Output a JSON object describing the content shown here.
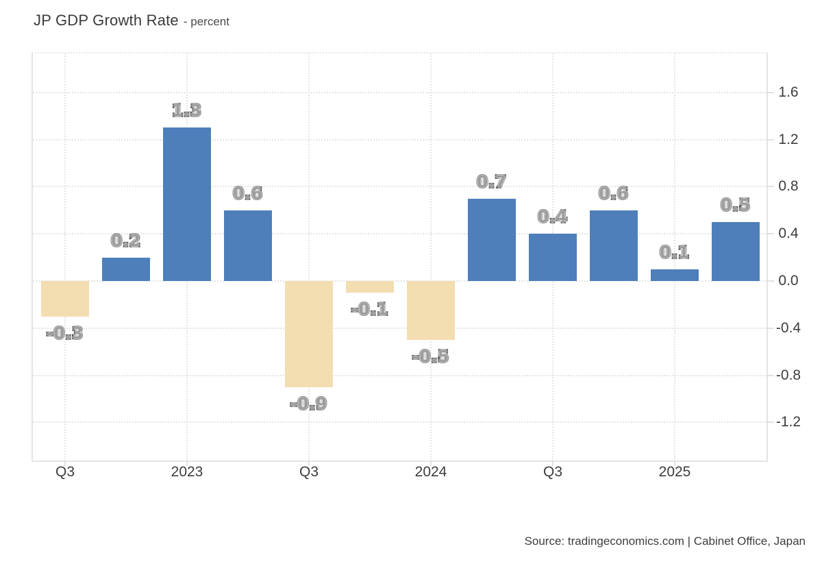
{
  "title": {
    "main": "JP GDP Growth Rate",
    "unit": "- percent"
  },
  "source": "Source: tradingeconomics.com | Cabinet Office, Japan",
  "chart_data": {
    "type": "bar",
    "title": "JP GDP Growth Rate",
    "unit": "percent",
    "x_axis_visible_labels": [
      "Q3",
      "2023",
      "Q3",
      "2024",
      "Q3",
      "2025"
    ],
    "bars": [
      {
        "value": -0.3,
        "label": "-0.3",
        "axis_label": "Q3"
      },
      {
        "value": 0.2,
        "label": "0.2",
        "axis_label": ""
      },
      {
        "value": 1.3,
        "label": "1.3",
        "axis_label": "2023"
      },
      {
        "value": 0.6,
        "label": "0.6",
        "axis_label": ""
      },
      {
        "value": -0.9,
        "label": "-0.9",
        "axis_label": "Q3"
      },
      {
        "value": -0.1,
        "label": "-0.1",
        "axis_label": ""
      },
      {
        "value": -0.5,
        "label": "-0.5",
        "axis_label": "2024"
      },
      {
        "value": 0.7,
        "label": "0.7",
        "axis_label": ""
      },
      {
        "value": 0.4,
        "label": "0.4",
        "axis_label": "Q3"
      },
      {
        "value": 0.6,
        "label": "0.6",
        "axis_label": ""
      },
      {
        "value": 0.1,
        "label": "0.1",
        "axis_label": "2025"
      },
      {
        "value": 0.5,
        "label": "0.5",
        "axis_label": ""
      }
    ],
    "y_axis": {
      "side": "right",
      "ticks": [
        {
          "value": 1.6,
          "label": "1.6"
        },
        {
          "value": 1.2,
          "label": "1.2"
        },
        {
          "value": 0.8,
          "label": "0.8"
        },
        {
          "value": 0.4,
          "label": "0.4"
        },
        {
          "value": 0.0,
          "label": "0.0"
        },
        {
          "value": -0.4,
          "label": "-0.4"
        },
        {
          "value": -0.8,
          "label": "-0.8"
        },
        {
          "value": -1.2,
          "label": "-1.2"
        }
      ],
      "range_approx": [
        -1.5,
        2.0
      ]
    },
    "grid": {
      "style": "dotted",
      "color": "#e4e4e4"
    },
    "colors": {
      "positive_bar": "#4e7fba",
      "negative_bar": "#f3deb1",
      "value_label_fill": "#9c9c9c",
      "value_label_outline": "#1d1d1d",
      "axis_text": "#3d3d3d"
    },
    "legend": null
  }
}
